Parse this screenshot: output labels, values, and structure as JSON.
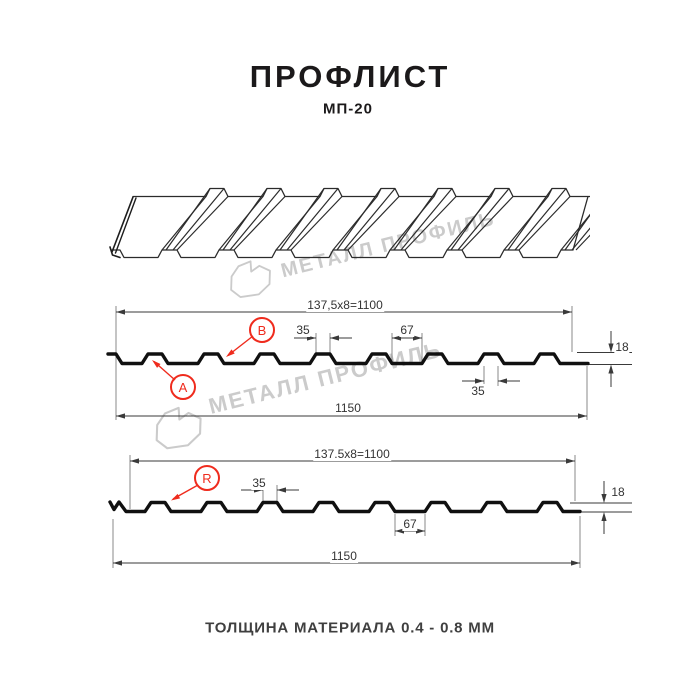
{
  "header": {
    "title": "ПРОФЛИСТ",
    "subtitle": "МП-20"
  },
  "footer": {
    "text": "ТОЛЩИНА МАТЕРИАЛА 0.4 - 0.8 ММ"
  },
  "watermark": {
    "text": "МЕТАЛЛ ПРОФИЛЬ"
  },
  "colors": {
    "accent_red": "#ef2b1d",
    "profile_line": "#101010",
    "dim_line": "#3a3a3a",
    "ext_line": "#8a8a8a",
    "sketch_line": "#2b2b2b",
    "watermark_gray": "#cbcbcb"
  },
  "profile_top": {
    "pitch_dim": "137,5x8=1100",
    "top_width": "35",
    "gap_width": "67",
    "height": "18",
    "bottom_width": "35",
    "total_width": "1150",
    "label_a": "A",
    "label_b": "B"
  },
  "profile_bottom": {
    "pitch_dim": "137.5x8=1100",
    "top_width": "35",
    "gap_width": "67",
    "height": "18",
    "total_width": "1150",
    "label_r": "R"
  }
}
